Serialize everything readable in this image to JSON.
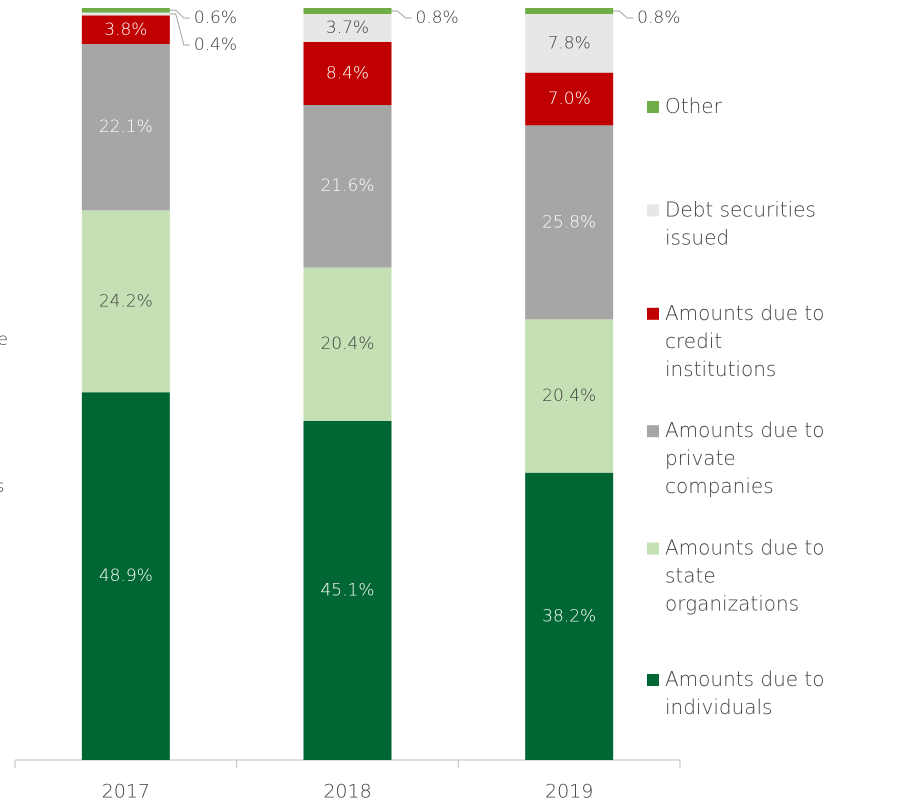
{
  "chart_data": {
    "type": "stacked_bar",
    "categories": [
      "2017",
      "2018",
      "2019"
    ],
    "ylim": [
      0,
      100
    ],
    "annotations": [
      "ble",
      "ers"
    ],
    "series": [
      {
        "name": "Amounts due to individuals",
        "color": "#006633",
        "values": [
          48.9,
          45.1,
          38.2
        ],
        "value_labels": [
          "48.9%",
          "45.1%",
          "38.2%"
        ]
      },
      {
        "name": "Amounts due to state organizations",
        "color": "#c5e0b4",
        "values": [
          24.2,
          20.4,
          20.4
        ],
        "value_labels": [
          "24.2%",
          "20.4%",
          "20.4%"
        ]
      },
      {
        "name": "Amounts due to private companies",
        "color": "#a6a6a6",
        "values": [
          22.1,
          21.6,
          25.8
        ],
        "value_labels": [
          "22.1%",
          "21.6%",
          "25.8%"
        ]
      },
      {
        "name": "Amounts due to credit institutions",
        "color": "#c00000",
        "values": [
          3.8,
          8.4,
          7.0
        ],
        "value_labels": [
          "3.8%",
          "8.4%",
          "7.0%"
        ]
      },
      {
        "name": "Debt securities issued",
        "color": "#e7e7e7",
        "values": [
          0.4,
          3.7,
          7.8
        ],
        "value_labels": [
          "0.4%",
          "3.7%",
          "7.8%"
        ]
      },
      {
        "name": "Other",
        "color": "#70ad47",
        "values": [
          0.6,
          0.8,
          0.8
        ],
        "value_labels": [
          "0.6%",
          "0.8%",
          "0.8%"
        ]
      }
    ]
  }
}
